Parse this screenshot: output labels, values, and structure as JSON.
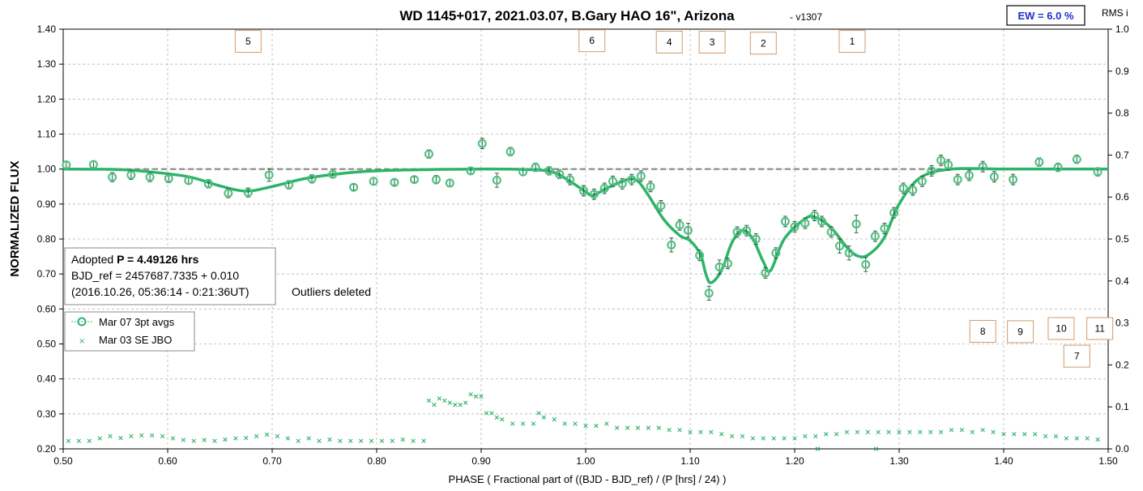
{
  "chart_data": {
    "type": "scatter",
    "title": "WD 1145+017, 2021.03.07, B.Gary HAO 16\", Arizona",
    "version": "-  v1307",
    "xlabel": "PHASE ( Fractional part of ((BJD - BJD_ref) / (P [hrs] / 24) )",
    "ylabel": "NORMALIZED FLUX",
    "y2label": "RMS i",
    "xlim": [
      0.5,
      1.5
    ],
    "ylim": [
      0.2,
      1.4
    ],
    "y2lim": [
      0.0,
      1.0
    ],
    "x_ticks": [
      "0.50",
      "0.60",
      "0.70",
      "0.80",
      "0.90",
      "1.00",
      "1.10",
      "1.20",
      "1.30",
      "1.40",
      "1.50"
    ],
    "y_ticks": [
      "0.20",
      "0.30",
      "0.40",
      "0.50",
      "0.60",
      "0.70",
      "0.80",
      "0.90",
      "1.00",
      "1.10",
      "1.20",
      "1.30",
      "1.40"
    ],
    "y2_ticks": [
      "0.0",
      "0.1",
      "0.2",
      "0.3",
      "0.4",
      "0.5",
      "0.6",
      "0.7",
      "0.8",
      "0.9",
      "1.0"
    ],
    "grid": true,
    "reference_level": 1.0,
    "ew_label": "EW = 6.0 %",
    "info": {
      "period_prefix": "Adopted ",
      "period": "P = 4.49126 hrs",
      "bjd_ref": "BJD_ref = 2457687.7335 + 0.010",
      "epoch": "(2016.10.26, 05:36:14 - 0:21:36UT)"
    },
    "note": "Outliers deleted",
    "legend_placement": "left",
    "colors": {
      "series": "#2db36a",
      "dashed": "#888888",
      "box_border": "#d09a6a",
      "ew_text": "#1f2fc8"
    },
    "series": [
      {
        "name": "Mar 07 3pt avgs",
        "marker": "circle",
        "points": [
          [
            0.503,
            1.012,
            0.01
          ],
          [
            0.529,
            1.013,
            0.01
          ],
          [
            0.547,
            0.977,
            0.013
          ],
          [
            0.565,
            0.983,
            0.013
          ],
          [
            0.583,
            0.977,
            0.013
          ],
          [
            0.601,
            0.973,
            0.012
          ],
          [
            0.62,
            0.967,
            0.01
          ],
          [
            0.639,
            0.958,
            0.012
          ],
          [
            0.658,
            0.931,
            0.013
          ],
          [
            0.677,
            0.933,
            0.013
          ],
          [
            0.697,
            0.983,
            0.018
          ],
          [
            0.716,
            0.955,
            0.012
          ],
          [
            0.738,
            0.972,
            0.012
          ],
          [
            0.758,
            0.985,
            0.01
          ],
          [
            0.778,
            0.948,
            0.008
          ],
          [
            0.797,
            0.965,
            0.01
          ],
          [
            0.817,
            0.962,
            0.008
          ],
          [
            0.836,
            0.97,
            0.008
          ],
          [
            0.85,
            1.043,
            0.012
          ],
          [
            0.857,
            0.97,
            0.012
          ],
          [
            0.87,
            0.96,
            0.01
          ],
          [
            0.89,
            0.995,
            0.01
          ],
          [
            0.901,
            1.073,
            0.015
          ],
          [
            0.915,
            0.968,
            0.02
          ],
          [
            0.928,
            1.05,
            0.012
          ],
          [
            0.94,
            0.992,
            0.01
          ],
          [
            0.952,
            1.005,
            0.012
          ],
          [
            0.965,
            0.995,
            0.012
          ],
          [
            0.975,
            0.985,
            0.012
          ],
          [
            0.985,
            0.97,
            0.015
          ],
          [
            0.998,
            0.938,
            0.015
          ],
          [
            1.008,
            0.928,
            0.015
          ],
          [
            1.018,
            0.945,
            0.015
          ],
          [
            1.026,
            0.965,
            0.015
          ],
          [
            1.035,
            0.958,
            0.015
          ],
          [
            1.044,
            0.97,
            0.015
          ],
          [
            1.053,
            0.98,
            0.015
          ],
          [
            1.062,
            0.95,
            0.015
          ],
          [
            1.072,
            0.895,
            0.015
          ],
          [
            1.082,
            0.783,
            0.02
          ],
          [
            1.09,
            0.84,
            0.015
          ],
          [
            1.098,
            0.825,
            0.02
          ],
          [
            1.109,
            0.753,
            0.015
          ],
          [
            1.118,
            0.645,
            0.02
          ],
          [
            1.128,
            0.72,
            0.02
          ],
          [
            1.136,
            0.73,
            0.015
          ],
          [
            1.145,
            0.82,
            0.015
          ],
          [
            1.154,
            0.824,
            0.015
          ],
          [
            1.163,
            0.8,
            0.015
          ],
          [
            1.172,
            0.703,
            0.015
          ],
          [
            1.182,
            0.76,
            0.015
          ],
          [
            1.191,
            0.85,
            0.015
          ],
          [
            1.2,
            0.835,
            0.015
          ],
          [
            1.21,
            0.845,
            0.015
          ],
          [
            1.219,
            0.867,
            0.015
          ],
          [
            1.226,
            0.85,
            0.015
          ],
          [
            1.235,
            0.82,
            0.015
          ],
          [
            1.243,
            0.78,
            0.02
          ],
          [
            1.252,
            0.76,
            0.02
          ],
          [
            1.259,
            0.843,
            0.025
          ],
          [
            1.268,
            0.727,
            0.02
          ],
          [
            1.277,
            0.808,
            0.015
          ],
          [
            1.286,
            0.83,
            0.015
          ],
          [
            1.295,
            0.875,
            0.015
          ],
          [
            1.304,
            0.945,
            0.015
          ],
          [
            1.313,
            0.94,
            0.015
          ],
          [
            1.322,
            0.965,
            0.015
          ],
          [
            1.331,
            0.995,
            0.015
          ],
          [
            1.34,
            1.025,
            0.015
          ],
          [
            1.347,
            1.012,
            0.015
          ],
          [
            1.356,
            0.97,
            0.015
          ],
          [
            1.367,
            0.982,
            0.015
          ],
          [
            1.38,
            1.007,
            0.015
          ],
          [
            1.391,
            0.978,
            0.015
          ],
          [
            1.409,
            0.97,
            0.015
          ],
          [
            1.434,
            1.02,
            0.012
          ],
          [
            1.452,
            1.005,
            0.012
          ],
          [
            1.47,
            1.028,
            0.012
          ],
          [
            1.49,
            0.992,
            0.012
          ]
        ]
      },
      {
        "name": "Mar 03 SE JBO",
        "marker": "x",
        "axis": "right",
        "points": [
          [
            0.505,
            0.019
          ],
          [
            0.515,
            0.019
          ],
          [
            0.525,
            0.019
          ],
          [
            0.535,
            0.025
          ],
          [
            0.545,
            0.03
          ],
          [
            0.555,
            0.026
          ],
          [
            0.565,
            0.03
          ],
          [
            0.575,
            0.032
          ],
          [
            0.585,
            0.032
          ],
          [
            0.595,
            0.03
          ],
          [
            0.605,
            0.025
          ],
          [
            0.615,
            0.021
          ],
          [
            0.625,
            0.019
          ],
          [
            0.635,
            0.021
          ],
          [
            0.645,
            0.019
          ],
          [
            0.655,
            0.022
          ],
          [
            0.665,
            0.025
          ],
          [
            0.675,
            0.026
          ],
          [
            0.685,
            0.03
          ],
          [
            0.695,
            0.034
          ],
          [
            0.705,
            0.03
          ],
          [
            0.715,
            0.025
          ],
          [
            0.725,
            0.019
          ],
          [
            0.735,
            0.025
          ],
          [
            0.745,
            0.019
          ],
          [
            0.755,
            0.022
          ],
          [
            0.765,
            0.019
          ],
          [
            0.775,
            0.019
          ],
          [
            0.785,
            0.019
          ],
          [
            0.795,
            0.019
          ],
          [
            0.805,
            0.019
          ],
          [
            0.815,
            0.019
          ],
          [
            0.825,
            0.022
          ],
          [
            0.835,
            0.019
          ],
          [
            0.845,
            0.019
          ],
          [
            0.85,
            0.115
          ],
          [
            0.855,
            0.105
          ],
          [
            0.86,
            0.12
          ],
          [
            0.865,
            0.115
          ],
          [
            0.87,
            0.11
          ],
          [
            0.875,
            0.105
          ],
          [
            0.88,
            0.105
          ],
          [
            0.885,
            0.11
          ],
          [
            0.89,
            0.13
          ],
          [
            0.895,
            0.125
          ],
          [
            0.9,
            0.125
          ],
          [
            0.905,
            0.085
          ],
          [
            0.91,
            0.085
          ],
          [
            0.915,
            0.075
          ],
          [
            0.92,
            0.07
          ],
          [
            0.93,
            0.06
          ],
          [
            0.94,
            0.06
          ],
          [
            0.95,
            0.06
          ],
          [
            0.955,
            0.085
          ],
          [
            0.96,
            0.075
          ],
          [
            0.97,
            0.07
          ],
          [
            0.98,
            0.06
          ],
          [
            0.99,
            0.06
          ],
          [
            1.0,
            0.055
          ],
          [
            1.01,
            0.055
          ],
          [
            1.02,
            0.06
          ],
          [
            1.03,
            0.05
          ],
          [
            1.04,
            0.05
          ],
          [
            1.05,
            0.05
          ],
          [
            1.06,
            0.05
          ],
          [
            1.07,
            0.05
          ],
          [
            1.08,
            0.045
          ],
          [
            1.09,
            0.045
          ],
          [
            1.1,
            0.04
          ],
          [
            1.11,
            0.04
          ],
          [
            1.12,
            0.04
          ],
          [
            1.13,
            0.035
          ],
          [
            1.14,
            0.03
          ],
          [
            1.15,
            0.03
          ],
          [
            1.16,
            0.025
          ],
          [
            1.17,
            0.025
          ],
          [
            1.18,
            0.025
          ],
          [
            1.19,
            0.025
          ],
          [
            1.2,
            0.025
          ],
          [
            1.21,
            0.03
          ],
          [
            1.22,
            0.03
          ],
          [
            1.23,
            0.035
          ],
          [
            1.24,
            0.035
          ],
          [
            1.25,
            0.04
          ],
          [
            1.26,
            0.04
          ],
          [
            1.27,
            0.04
          ],
          [
            1.28,
            0.04
          ],
          [
            1.29,
            0.04
          ],
          [
            1.3,
            0.04
          ],
          [
            1.31,
            0.04
          ],
          [
            1.32,
            0.04
          ],
          [
            1.33,
            0.04
          ],
          [
            1.34,
            0.04
          ],
          [
            1.35,
            0.045
          ],
          [
            1.36,
            0.045
          ],
          [
            1.37,
            0.04
          ],
          [
            1.38,
            0.045
          ],
          [
            1.39,
            0.04
          ],
          [
            1.4,
            0.035
          ],
          [
            1.41,
            0.035
          ],
          [
            1.42,
            0.035
          ],
          [
            1.43,
            0.035
          ],
          [
            1.44,
            0.03
          ],
          [
            1.45,
            0.03
          ],
          [
            1.46,
            0.025
          ],
          [
            1.47,
            0.025
          ],
          [
            1.48,
            0.025
          ],
          [
            1.49,
            0.022
          ],
          [
            1.222,
            0.0
          ],
          [
            1.278,
            0.0
          ]
        ]
      }
    ],
    "model_fit": {
      "x": [
        0.5,
        0.55,
        0.58,
        0.62,
        0.65,
        0.675,
        0.7,
        0.73,
        0.76,
        0.8,
        0.9,
        0.95,
        0.97,
        0.985,
        1.0,
        1.007,
        1.02,
        1.04,
        1.05,
        1.06,
        1.075,
        1.09,
        1.1,
        1.11,
        1.115,
        1.12,
        1.13,
        1.14,
        1.15,
        1.16,
        1.17,
        1.177,
        1.19,
        1.21,
        1.22,
        1.235,
        1.25,
        1.26,
        1.27,
        1.285,
        1.3,
        1.32,
        1.35,
        1.4,
        1.45,
        1.5
      ],
      "y": [
        1.0,
        0.999,
        0.993,
        0.978,
        0.952,
        0.937,
        0.95,
        0.972,
        0.985,
        0.995,
        1.0,
        0.998,
        0.99,
        0.965,
        0.935,
        0.925,
        0.945,
        0.97,
        0.965,
        0.925,
        0.855,
        0.81,
        0.795,
        0.755,
        0.7,
        0.675,
        0.71,
        0.79,
        0.825,
        0.8,
        0.735,
        0.71,
        0.8,
        0.858,
        0.862,
        0.832,
        0.776,
        0.752,
        0.754,
        0.8,
        0.9,
        0.975,
        1.0,
        1.0,
        1.0,
        1.0
      ]
    },
    "event_labels": [
      {
        "label": "1",
        "x": 1.255,
        "y": 1.365
      },
      {
        "label": "2",
        "x": 1.17,
        "y": 1.36
      },
      {
        "label": "3",
        "x": 1.121,
        "y": 1.363
      },
      {
        "label": "4",
        "x": 1.08,
        "y": 1.363
      },
      {
        "label": "5",
        "x": 0.677,
        "y": 1.365
      },
      {
        "label": "6",
        "x": 1.006,
        "y": 1.367
      },
      {
        "label": "7",
        "x": 1.47,
        "y": 0.465
      },
      {
        "label": "8",
        "x": 1.38,
        "y": 0.536
      },
      {
        "label": "9",
        "x": 1.416,
        "y": 0.535
      },
      {
        "label": "10",
        "x": 1.455,
        "y": 0.544
      },
      {
        "label": "11",
        "x": 1.492,
        "y": 0.544
      }
    ]
  }
}
